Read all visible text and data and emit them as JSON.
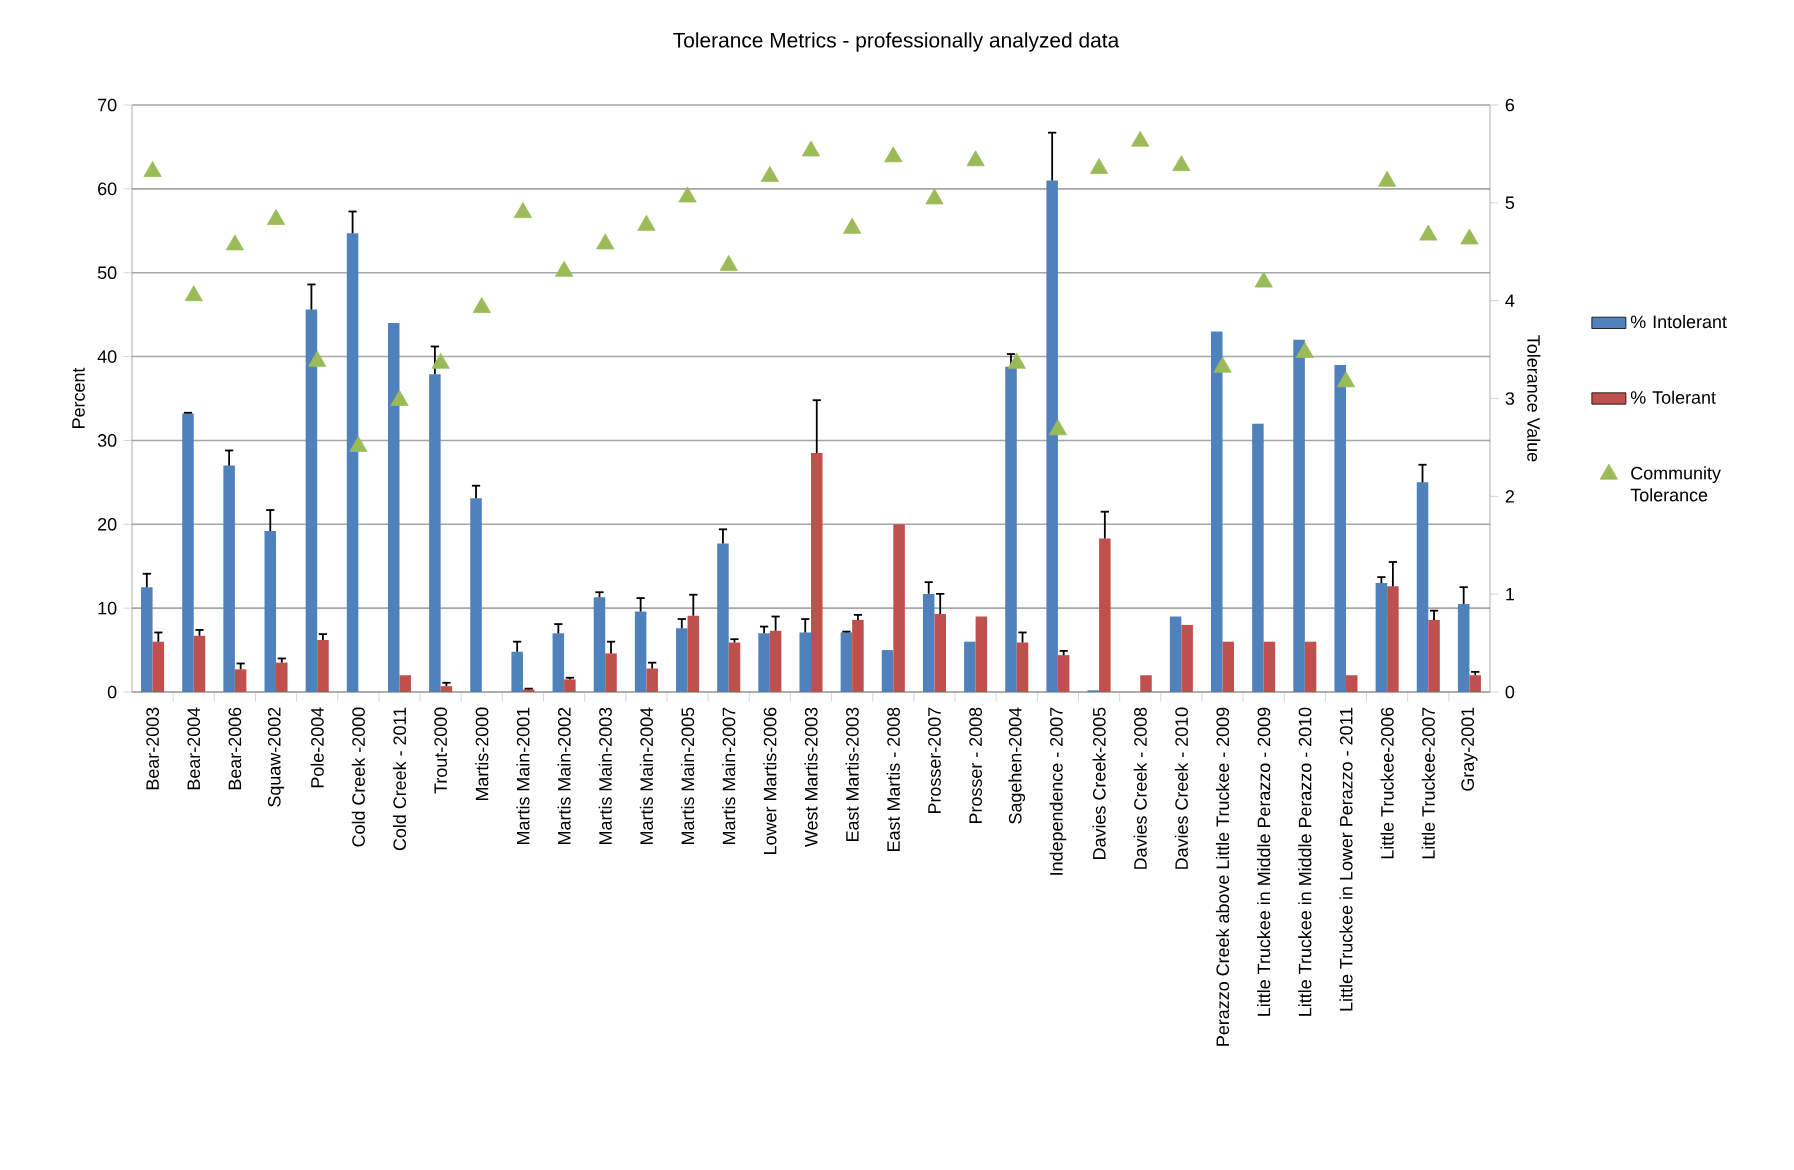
{
  "chart_data": {
    "type": "bar",
    "title": "Tolerance Metrics - professionally analyzed data",
    "categories": [
      "Bear-2003",
      "Bear-2004",
      "Bear-2006",
      "Squaw-2002",
      "Pole-2004",
      "Cold Creek -2000",
      "Cold Creek - 2011",
      "Trout-2000",
      "Martis-2000",
      "Martis Main-2001",
      "Martis Main-2002",
      "Martis Main-2003",
      "Martis Main-2004",
      "Martis Main-2005",
      "Martis Main-2007",
      "Lower Martis-2006",
      "West Martis-2003",
      "East Martis-2003",
      "East Martis - 2008",
      "Prosser-2007",
      "Prosser - 2008",
      "Sagehen-2004",
      "Independence - 2007",
      "Davies Creek-2005",
      "Davies Creek - 2008",
      "Davies Creek - 2010",
      "Perazzo Creek above Little Truckee - 2009",
      "Little Truckee in Middle Perazzo - 2009",
      "Little Truckee in Middle Perazzo - 2010",
      "Little Truckee in Lower Perazzo - 2011",
      "Little Truckee-2006",
      "Little Truckee-2007",
      "Gray-2001"
    ],
    "series": [
      {
        "name": "% Intolerant",
        "color": "#4f81bd",
        "values": [
          12.5,
          33.2,
          27,
          19.2,
          45.6,
          54.7,
          44,
          37.9,
          23.1,
          4.8,
          7,
          11.3,
          9.6,
          7.6,
          17.7,
          7,
          7.1,
          7.1,
          5,
          11.7,
          6,
          38.8,
          61,
          0.2,
          0,
          9,
          43,
          32,
          42,
          39,
          13,
          25,
          10.5
        ],
        "errors": [
          [
            12.5,
            14.1
          ],
          [
            33.2,
            33.3
          ],
          [
            27,
            28.8
          ],
          [
            19.2,
            21.7
          ],
          [
            45.6,
            48.6
          ],
          [
            54.7,
            57.3
          ],
          null,
          [
            37.9,
            41.2
          ],
          [
            23.1,
            24.6
          ],
          [
            4.8,
            6
          ],
          [
            7,
            8.1
          ],
          [
            11.3,
            11.9
          ],
          [
            9.6,
            11.2
          ],
          [
            7.6,
            8.7
          ],
          [
            17.7,
            19.4
          ],
          [
            7,
            7.8
          ],
          [
            7.1,
            8.7
          ],
          [
            7.1,
            7.2
          ],
          null,
          [
            11.7,
            13.1
          ],
          null,
          [
            38.8,
            40.3
          ],
          [
            61,
            66.7
          ],
          null,
          null,
          null,
          null,
          null,
          null,
          null,
          [
            13,
            13.7
          ],
          [
            25,
            27.1
          ],
          [
            10.5,
            12.5
          ]
        ]
      },
      {
        "name": "% Tolerant",
        "color": "#c0504d",
        "values": [
          6,
          6.7,
          2.7,
          3.5,
          6.2,
          0,
          2,
          0.7,
          0,
          0.3,
          1.5,
          4.6,
          2.8,
          9.1,
          5.9,
          7.3,
          28.5,
          8.6,
          20,
          9.3,
          9,
          5.9,
          4.4,
          18.3,
          2,
          8,
          6,
          6,
          6,
          2,
          12.6,
          8.6,
          2
        ],
        "errors": [
          [
            6,
            7.1
          ],
          [
            6.7,
            7.4
          ],
          [
            2.7,
            3.4
          ],
          [
            3.5,
            4
          ],
          [
            6.2,
            6.9
          ],
          null,
          null,
          [
            0.7,
            1.1
          ],
          null,
          [
            0.3,
            0.4
          ],
          [
            1.5,
            1.7
          ],
          [
            4.6,
            6
          ],
          [
            2.8,
            3.5
          ],
          [
            9.1,
            11.6
          ],
          [
            5.9,
            6.3
          ],
          [
            7.3,
            9
          ],
          [
            28.5,
            34.8
          ],
          [
            8.6,
            9.2
          ],
          null,
          [
            9.3,
            11.7
          ],
          null,
          [
            5.9,
            7.1
          ],
          [
            4.4,
            4.9
          ],
          [
            18.3,
            21.5
          ],
          null,
          null,
          null,
          null,
          null,
          null,
          [
            12.6,
            15.5
          ],
          [
            8.6,
            9.7
          ],
          [
            2,
            2.4
          ]
        ]
      },
      {
        "name": "Community Tolerance",
        "type": "scatter",
        "axis": "y2",
        "marker": "triangle",
        "color": "#9bbb59",
        "values": [
          5.32,
          4.05,
          4.57,
          4.83,
          3.38,
          2.51,
          2.98,
          3.36,
          3.93,
          4.9,
          4.3,
          4.58,
          4.77,
          5.06,
          4.36,
          5.27,
          5.53,
          4.74,
          5.47,
          5.04,
          5.43,
          3.36,
          2.68,
          5.35,
          5.63,
          5.38,
          3.32,
          4.19,
          3.47,
          3.17,
          5.22,
          4.67,
          4.63
        ]
      }
    ],
    "ylabel": "Percent",
    "y2label": "Tolerance Value",
    "ylim": [
      0,
      70
    ],
    "yticks": [
      0,
      10,
      20,
      30,
      40,
      50,
      60,
      70
    ],
    "y2lim": [
      0,
      6
    ],
    "y2ticks": [
      0,
      1,
      2,
      3,
      4,
      5,
      6
    ],
    "grid": "y",
    "legend": "right"
  }
}
